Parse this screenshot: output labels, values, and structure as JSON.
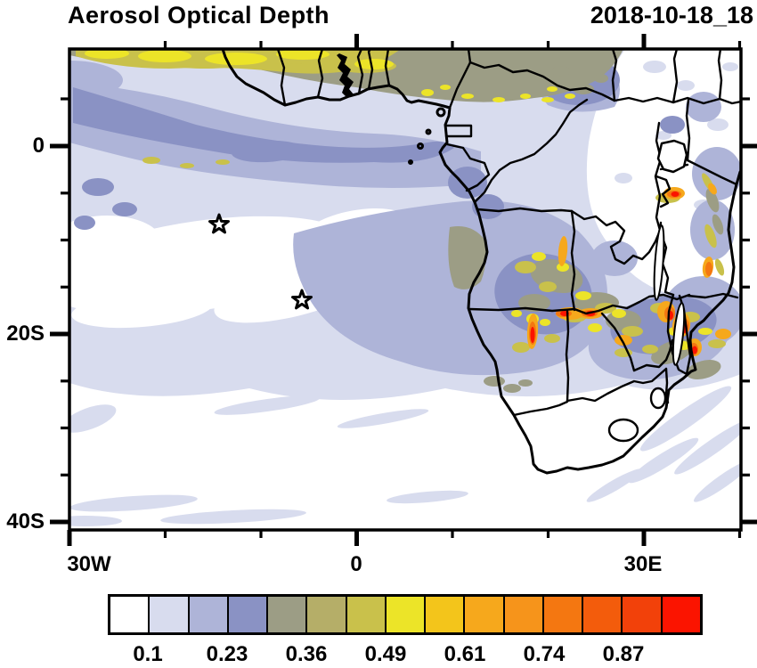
{
  "header": {
    "title": "Aerosol Optical Depth",
    "date": "2018-10-18_18"
  },
  "axes": {
    "y_labels": [
      "0",
      "20S",
      "40S"
    ],
    "x_labels": [
      "30W",
      "0",
      "30E"
    ]
  },
  "colorbar": {
    "labels": [
      "0.1",
      "0.23",
      "0.36",
      "0.49",
      "0.61",
      "0.74",
      "0.87"
    ],
    "colors": [
      "#ffffff",
      "#d8dcee",
      "#aeb4d8",
      "#8a92c4",
      "#9c9d85",
      "#b5ae68",
      "#c9c14b",
      "#ece428",
      "#f3c51b",
      "#f6a81c",
      "#f6941b",
      "#f47711",
      "#f35c0c",
      "#f2410a",
      "#fb1400"
    ]
  },
  "chart_data": {
    "type": "heatmap",
    "subtype": "filled-contour-geographic-map",
    "title": "Aerosol Optical Depth",
    "timestamp_label": "2018-10-18_18",
    "lon_range_deg": [
      -30,
      40
    ],
    "lat_range_deg": [
      -41,
      10
    ],
    "x_tick_labels": [
      "30W",
      "0",
      "30E"
    ],
    "x_minor_tick_interval_deg": 10,
    "y_tick_labels": [
      "0",
      "20S",
      "40S"
    ],
    "y_minor_tick_interval_deg": 5,
    "colorbar_labeled_levels": [
      0.1,
      0.23,
      0.36,
      0.49,
      0.61,
      0.74,
      0.87
    ],
    "colorbar_n_cells": 15,
    "colorbar_colors": [
      "#ffffff",
      "#d8dcee",
      "#aeb4d8",
      "#8a92c4",
      "#9c9d85",
      "#b5ae68",
      "#c9c14b",
      "#ece428",
      "#f3c51b",
      "#f6a81c",
      "#f6941b",
      "#f47711",
      "#f35c0c",
      "#f2410a",
      "#fb1400"
    ],
    "markers": [
      {
        "type": "open-star",
        "lon": -14.4,
        "lat": -8.3
      },
      {
        "type": "open-star",
        "lon": -5.7,
        "lat": -16.4
      }
    ],
    "regions_depicted": [
      "High AOD band (0.4-0.7, olive/yellow) along Gulf of Guinea coast and West Africa at top of map",
      "Moderate AOD plume (0.15-0.3, lavender/blue) over southeast Atlantic off Angola",
      "Biomass-burning hotspots (0.6-1.0, orange/red) over Angola, Zambia, Zimbabwe, Malawi, Mozambique and near Lake Victoria",
      "Low AOD (<0.1, white) over eastern DRC/Kenya, Namibia/South Africa and Southern Ocean"
    ],
    "legend_position": "bottom",
    "grid": false
  }
}
